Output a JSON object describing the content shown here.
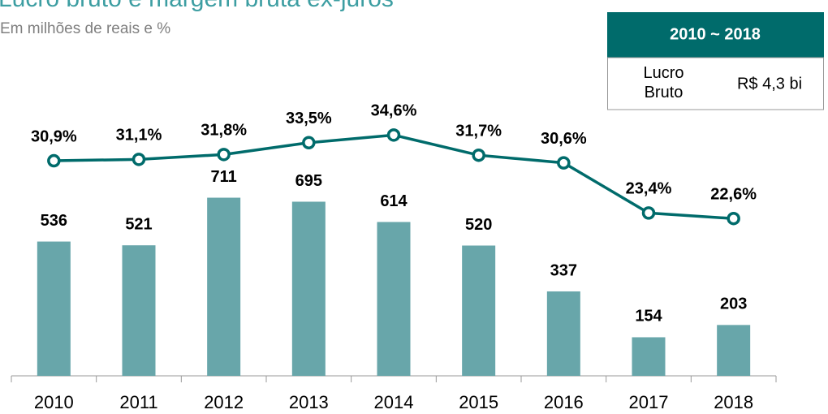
{
  "chart_data": {
    "type": "bar",
    "title": "Lucro bruto e margem bruta ex-juros",
    "subtitle": "Em milhões de reais e %",
    "categories": [
      "2010",
      "2011",
      "2012",
      "2013",
      "2014",
      "2015",
      "2016",
      "2017",
      "2018"
    ],
    "series": [
      {
        "color": "#68a6aa",
        "values": [
          536,
          521,
          711,
          695,
          614,
          520,
          337,
          154,
          203
        ]
      },
      {
        "type": "line",
        "axis": "y2",
        "color": "#006b6b",
        "values": [
          30.9,
          31.1,
          31.8,
          33.5,
          34.6,
          31.7,
          30.6,
          23.4,
          22.6
        ],
        "value_labels": [
          "30,9%",
          "31,1%",
          "31,8%",
          "33,5%",
          "34,6%",
          "31,7%",
          "30,6%",
          "23,4%",
          "22,6%"
        ]
      }
    ],
    "ylim": [
      0,
      1500
    ],
    "y2lim": [
      0,
      54
    ]
  },
  "summary": {
    "header": "2010 ~ 2018",
    "label": "Lucro Bruto",
    "value": "R$ 4,3 bi"
  }
}
